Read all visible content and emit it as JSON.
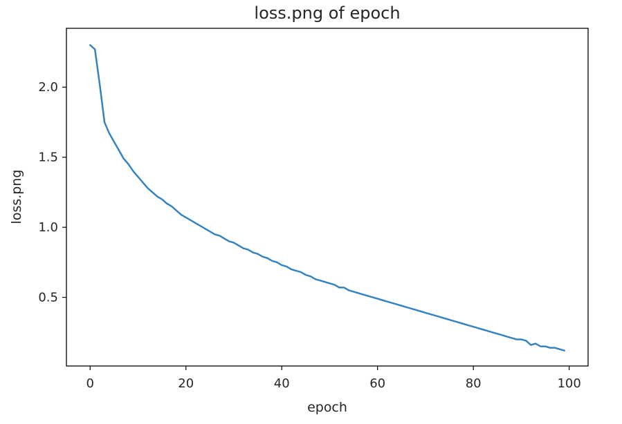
{
  "chart_data": {
    "type": "line",
    "title": "loss.png of epoch",
    "xlabel": "epoch",
    "ylabel": "loss.png",
    "xlim": [
      -4.95,
      103.95
    ],
    "ylim": [
      0.01,
      2.42
    ],
    "xticks": [
      0,
      20,
      40,
      60,
      80,
      100
    ],
    "yticks": [
      0.5,
      1.0,
      1.5,
      2.0
    ],
    "xtick_labels": [
      "0",
      "20",
      "40",
      "60",
      "80",
      "100"
    ],
    "ytick_labels": [
      "0.5",
      "1.0",
      "1.5",
      "2.0"
    ],
    "grid": false,
    "line_color": "#3583c1",
    "series": [
      {
        "x": [
          0,
          1,
          2,
          3,
          4,
          5,
          6,
          7,
          8,
          9,
          10,
          11,
          12,
          13,
          14,
          15,
          16,
          17,
          18,
          19,
          20,
          21,
          22,
          23,
          24,
          25,
          26,
          27,
          28,
          29,
          30,
          31,
          32,
          33,
          34,
          35,
          36,
          37,
          38,
          39,
          40,
          41,
          42,
          43,
          44,
          45,
          46,
          47,
          48,
          49,
          50,
          51,
          52,
          53,
          54,
          55,
          56,
          57,
          58,
          59,
          60,
          61,
          62,
          63,
          64,
          65,
          66,
          67,
          68,
          69,
          70,
          71,
          72,
          73,
          74,
          75,
          76,
          77,
          78,
          79,
          80,
          81,
          82,
          83,
          84,
          85,
          86,
          87,
          88,
          89,
          90,
          91,
          92,
          93,
          94,
          95,
          96,
          97,
          98,
          99
        ],
        "values": [
          2.3,
          2.27,
          2.02,
          1.75,
          1.67,
          1.61,
          1.55,
          1.49,
          1.45,
          1.4,
          1.36,
          1.32,
          1.28,
          1.25,
          1.22,
          1.2,
          1.17,
          1.15,
          1.12,
          1.09,
          1.07,
          1.05,
          1.03,
          1.01,
          0.99,
          0.97,
          0.95,
          0.94,
          0.92,
          0.9,
          0.89,
          0.87,
          0.85,
          0.84,
          0.82,
          0.81,
          0.79,
          0.78,
          0.76,
          0.75,
          0.73,
          0.72,
          0.7,
          0.69,
          0.68,
          0.66,
          0.65,
          0.63,
          0.62,
          0.61,
          0.6,
          0.59,
          0.57,
          0.57,
          0.55,
          0.54,
          0.53,
          0.52,
          0.51,
          0.5,
          0.49,
          0.48,
          0.47,
          0.46,
          0.45,
          0.44,
          0.43,
          0.42,
          0.41,
          0.4,
          0.39,
          0.38,
          0.37,
          0.36,
          0.35,
          0.34,
          0.33,
          0.32,
          0.31,
          0.3,
          0.29,
          0.28,
          0.27,
          0.26,
          0.25,
          0.24,
          0.23,
          0.22,
          0.21,
          0.2,
          0.2,
          0.19,
          0.16,
          0.17,
          0.15,
          0.15,
          0.14,
          0.14,
          0.13,
          0.12
        ]
      }
    ]
  }
}
